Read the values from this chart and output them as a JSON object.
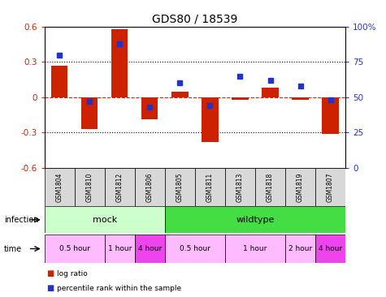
{
  "title": "GDS80 / 18539",
  "samples": [
    "GSM1804",
    "GSM1810",
    "GSM1812",
    "GSM1806",
    "GSM1805",
    "GSM1811",
    "GSM1813",
    "GSM1818",
    "GSM1819",
    "GSM1807"
  ],
  "log_ratio": [
    0.27,
    -0.27,
    0.58,
    -0.19,
    0.05,
    -0.38,
    -0.02,
    0.08,
    -0.02,
    -0.31
  ],
  "percentile": [
    80,
    47,
    88,
    43,
    60,
    44,
    65,
    62,
    58,
    48
  ],
  "ylim_left": [
    -0.6,
    0.6
  ],
  "ylim_right": [
    0,
    100
  ],
  "yticks_left": [
    -0.6,
    -0.3,
    0.0,
    0.3,
    0.6
  ],
  "yticks_right": [
    0,
    25,
    50,
    75,
    100
  ],
  "bar_color": "#cc2200",
  "dot_color": "#2233cc",
  "bg_color": "#ffffff",
  "infection_groups": [
    {
      "label": "mock",
      "start": 0,
      "end": 4,
      "color": "#ccffcc"
    },
    {
      "label": "wildtype",
      "start": 4,
      "end": 10,
      "color": "#44dd44"
    }
  ],
  "time_groups": [
    {
      "label": "0.5 hour",
      "start": 0,
      "end": 2,
      "color": "#ffbbff"
    },
    {
      "label": "1 hour",
      "start": 2,
      "end": 3,
      "color": "#ffbbff"
    },
    {
      "label": "4 hour",
      "start": 3,
      "end": 4,
      "color": "#ee44ee"
    },
    {
      "label": "0.5 hour",
      "start": 4,
      "end": 6,
      "color": "#ffbbff"
    },
    {
      "label": "1 hour",
      "start": 6,
      "end": 8,
      "color": "#ffbbff"
    },
    {
      "label": "2 hour",
      "start": 8,
      "end": 9,
      "color": "#ffbbff"
    },
    {
      "label": "4 hour",
      "start": 9,
      "end": 10,
      "color": "#ee44ee"
    }
  ]
}
